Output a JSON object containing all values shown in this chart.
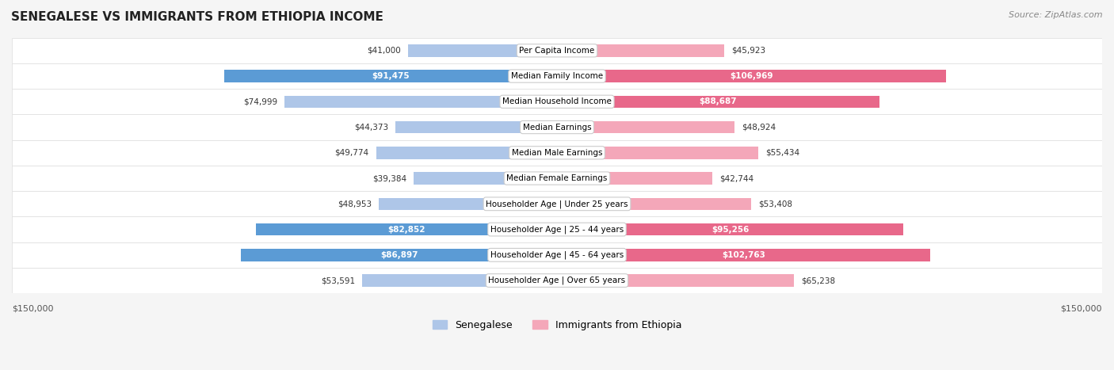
{
  "title": "SENEGALESE VS IMMIGRANTS FROM ETHIOPIA INCOME",
  "source": "Source: ZipAtlas.com",
  "categories": [
    "Per Capita Income",
    "Median Family Income",
    "Median Household Income",
    "Median Earnings",
    "Median Male Earnings",
    "Median Female Earnings",
    "Householder Age | Under 25 years",
    "Householder Age | 25 - 44 years",
    "Householder Age | 45 - 64 years",
    "Householder Age | Over 65 years"
  ],
  "senegalese_values": [
    41000,
    91475,
    74999,
    44373,
    49774,
    39384,
    48953,
    82852,
    86897,
    53591
  ],
  "ethiopia_values": [
    45923,
    106969,
    88687,
    48924,
    55434,
    42744,
    53408,
    95256,
    102763,
    65238
  ],
  "senegalese_labels": [
    "$41,000",
    "$91,475",
    "$74,999",
    "$44,373",
    "$49,774",
    "$39,384",
    "$48,953",
    "$82,852",
    "$86,897",
    "$53,591"
  ],
  "ethiopia_labels": [
    "$45,923",
    "$106,969",
    "$88,687",
    "$48,924",
    "$55,434",
    "$42,744",
    "$53,408",
    "$95,256",
    "$102,763",
    "$65,238"
  ],
  "max_value": 150000,
  "senegalese_color_light": "#aec6e8",
  "senegalese_color_dark": "#5b9bd5",
  "ethiopia_color_light": "#f4a7b9",
  "ethiopia_color_dark": "#e8688a",
  "label_threshold": 80000,
  "background_color": "#f5f5f5",
  "row_bg_color": "#ffffff",
  "row_alt_color": "#f0f0f0",
  "legend_senegalese": "Senegalese",
  "legend_ethiopia": "Immigrants from Ethiopia",
  "axis_label_left": "$150,000",
  "axis_label_right": "$150,000"
}
